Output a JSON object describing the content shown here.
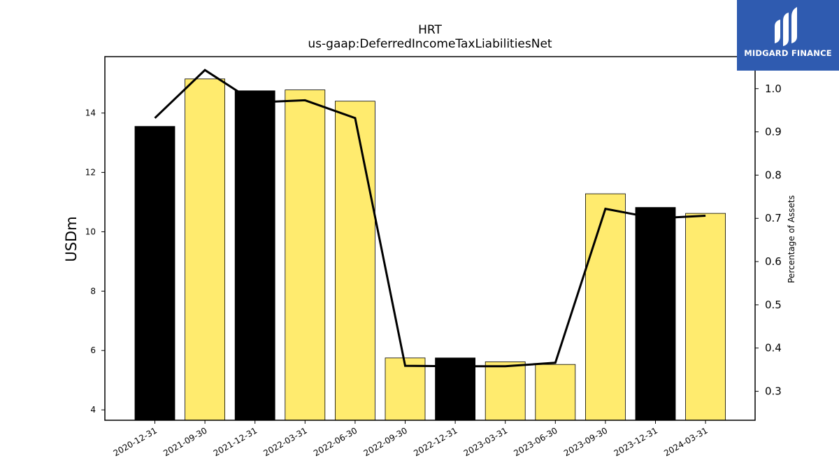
{
  "chart_data": {
    "type": "bar",
    "title": "HRT",
    "subtitle": "us-gaap:DeferredIncomeTaxLiabilitiesNet",
    "ylabel": "USDm",
    "ylabel_right": "Percentage of Assets",
    "ylim": [
      3.65,
      15.9
    ],
    "ylim_right": [
      0.233,
      1.074
    ],
    "yticks": [
      4,
      6,
      8,
      10,
      12,
      14
    ],
    "yticks_right": [
      0.3,
      0.4,
      0.5,
      0.6,
      0.7,
      0.8,
      0.9,
      1.0
    ],
    "categories": [
      "2020-12-31",
      "2021-09-30",
      "2021-12-31",
      "2022-03-31",
      "2022-06-30",
      "2022-09-30",
      "2022-12-31",
      "2023-03-31",
      "2023-06-30",
      "2023-09-30",
      "2023-12-31",
      "2024-03-31"
    ],
    "series": [
      {
        "values": [
          13.55,
          15.15,
          14.75,
          14.78,
          14.4,
          5.75,
          5.75,
          5.62,
          5.53,
          11.28,
          10.82,
          10.62
        ],
        "colors": [
          "#000000",
          "#ffeb6e",
          "#000000",
          "#ffeb6e",
          "#ffeb6e",
          "#ffeb6e",
          "#000000",
          "#ffeb6e",
          "#ffeb6e",
          "#ffeb6e",
          "#000000",
          "#ffeb6e"
        ]
      },
      {
        "axis": "right",
        "type": "line",
        "color": "#000000",
        "values": [
          0.932,
          1.043,
          0.968,
          0.973,
          0.932,
          0.359,
          0.358,
          0.358,
          0.366,
          0.722,
          0.7,
          0.706
        ]
      }
    ],
    "grid": false
  },
  "logo": {
    "text": "MIDGARD FINANCE",
    "background": "#2f5bb0"
  }
}
